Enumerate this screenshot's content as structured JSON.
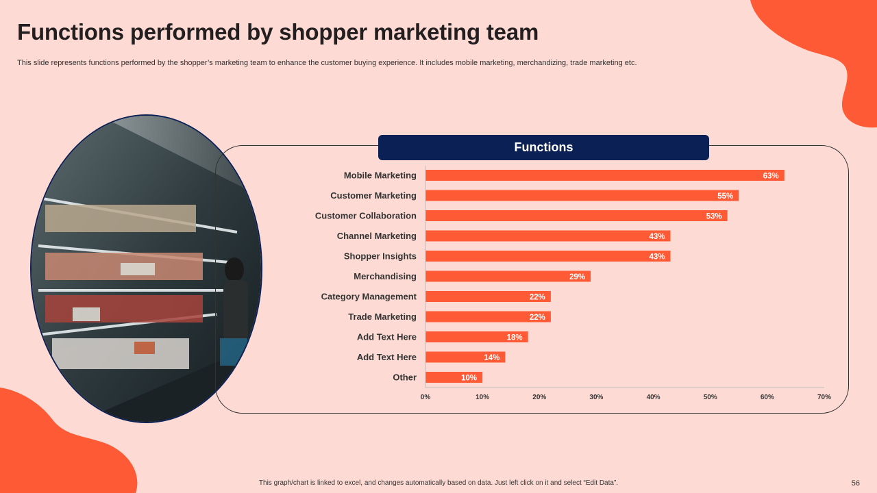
{
  "slide": {
    "title": "Functions performed by shopper marketing team",
    "subtitle": "This slide represents functions performed by the shopper’s marketing team to enhance the customer buying experience. It includes mobile marketing, merchandizing, trade marketing etc.",
    "footer_note": "This graph/chart is linked to excel, and changes automatically based on data. Just left click on it and select “Edit Data”.",
    "page_number": "56"
  },
  "colors": {
    "background": "#FDDAD3",
    "accent": "#FF5A36",
    "header_navy": "#0B2155",
    "text_dark": "#231F20"
  },
  "photo": {
    "description_icon": "supermarket-shelf-photo"
  },
  "chart_data": {
    "type": "bar",
    "orientation": "horizontal",
    "title": "Functions",
    "categories": [
      "Mobile Marketing",
      "Customer Marketing",
      "Customer Collaboration",
      "Channel Marketing",
      "Shopper Insights",
      "Merchandising",
      "Category Management",
      "Trade Marketing",
      "Add Text Here",
      "Add Text Here",
      "Other"
    ],
    "values": [
      63,
      55,
      53,
      43,
      43,
      29,
      22,
      22,
      18,
      14,
      10
    ],
    "value_labels": [
      "63%",
      "55%",
      "53%",
      "43%",
      "43%",
      "29%",
      "22%",
      "22%",
      "18%",
      "14%",
      "10%"
    ],
    "xlim": [
      0,
      70
    ],
    "ticks": [
      0,
      10,
      20,
      30,
      40,
      50,
      60,
      70
    ],
    "tick_labels": [
      "0%",
      "10%",
      "20%",
      "30%",
      "40%",
      "50%",
      "60%",
      "70%"
    ],
    "bar_color": "#FF5A36",
    "grid": false,
    "legend": "none"
  }
}
